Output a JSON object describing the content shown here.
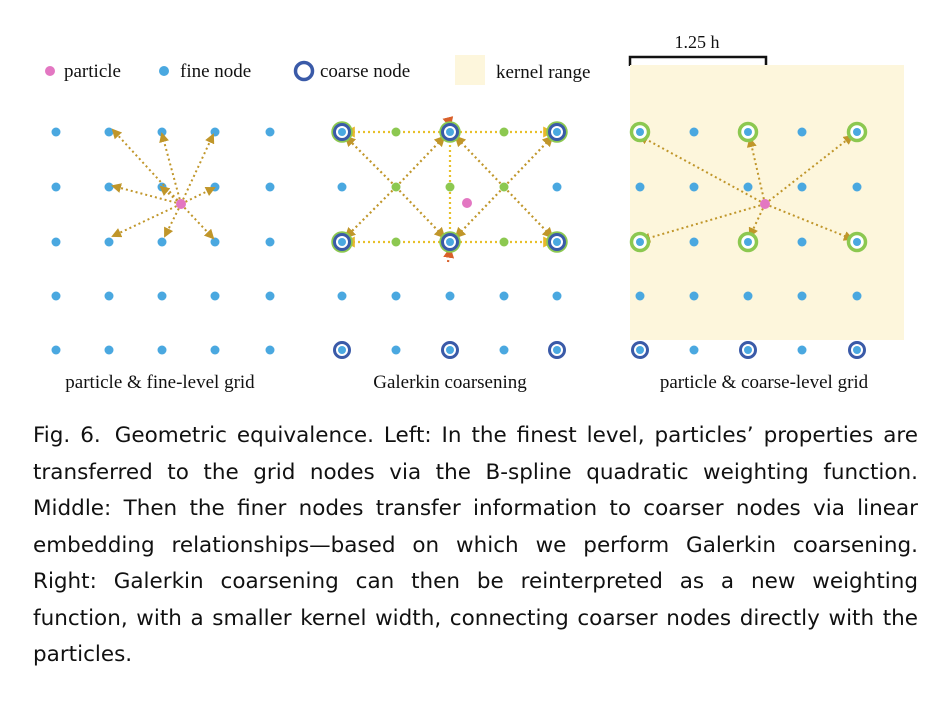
{
  "legend": {
    "particle": "particle",
    "fine_node": "fine node",
    "coarse_node": "coarse node",
    "kernel_range": "kernel range"
  },
  "scale_bar": {
    "label": "1.25 h"
  },
  "panels": [
    {
      "label": "particle & fine-level grid"
    },
    {
      "label": "Galerkin coarsening"
    },
    {
      "label": "particle & coarse-level grid"
    }
  ],
  "caption": {
    "figure_number": "Fig. 6.",
    "text": "Geometric equivalence. Left: In the finest level, particles’ properties are transferred to the grid nodes via the B-spline quadratic weighting function. Middle: Then the finer nodes transfer information to coarser nodes via linear embedding relationships—based on which we perform Galerkin coarsening. Right: Galerkin coarsening can then be reinterpreted as a new weighting function, with a smaller kernel width, connecting coarser nodes directly with the particles."
  },
  "colors": {
    "particle": "#e377c2",
    "fine_node": "#4aa8e0",
    "coarse_node_ring": "#3a5aa8",
    "midpoint_node": "#8cc850",
    "kernel_range": "#fdf6dc",
    "arrow": "#c0962a",
    "link": "#e8c02a"
  }
}
